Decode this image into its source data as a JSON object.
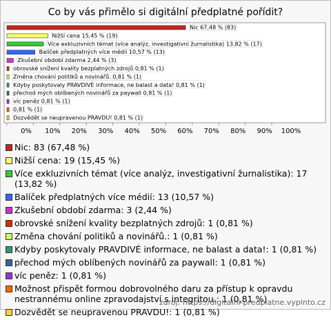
{
  "chart_data": {
    "type": "bar",
    "orientation": "horizontal",
    "title": "Co by vás přimělo si digitální předplatné pořídit?",
    "values": [
      67.48,
      15.45,
      13.82,
      10.57,
      2.44,
      0.81,
      0.81,
      0.81,
      0.81,
      0.81,
      0.81,
      0.81
    ],
    "value_labels": [
      "Nic 67,48 % (83)",
      "Nižší cena 15,45 % (19)",
      "Více exkluzivních témat (více analýz, investigativní žurnalistika) 13,82 % (17)",
      "Balíček předplatných více médií 10,57 % (13)",
      "Zkušební období zdarma 2,44 % (3)",
      "obrovské snížení kvality bezplatných zdrojů 0,81 % (1)",
      "Změna chování politiků a novinářů. 0,81 % (1)",
      "Kdyby poskytovaly PRAVDIVÉ informace, ne balast a data! 0,81 % (1)",
      "přechod mých oblíbených novinářů za paywall 0,81 % (1)",
      "víc peněz 0,81 % (1)",
      "0,81 % (1)",
      "Dozvědět se neupravenou PRAVDU! 0,81 % (1)"
    ],
    "legend_labels": [
      "Nic: 83 (67,48 %)",
      "Nižší cena: 19 (15,45 %)",
      "Více exkluzivních témat (více analýz, investigativní žurnalistika): 17 (13,82 %)",
      "Balíček předplatných více médií: 13 (10,57 %)",
      "Zkušební období zdarma: 3 (2,44 %)",
      "obrovské snížení kvality bezplatných zdrojů: 1 (0,81 %)",
      "Změna chování politiků a novinářů.: 1 (0,81 %)",
      "Kdyby poskytovaly PRAVDIVÉ informace, ne balast a data!: 1 (0,81 %)",
      "přechod mých oblíbených novinářů za paywall: 1 (0,81 %)",
      "víc peněz: 1 (0,81 %)",
      "Možnost přispět formou dobrovolného daru za přístup k opravdu nestrannému online zpravodajství s integritou.: 1 (0,81 %)",
      "Dozvědět se neupravenou PRAVDU!: 1 (0,81 %)"
    ],
    "colors": [
      "#c0281e",
      "#ffff66",
      "#33cc33",
      "#3366ff",
      "#cc33cc",
      "#cc3300",
      "#ccff66",
      "#339966",
      "#336699",
      "#9933cc",
      "#ff6600",
      "#ffcc33"
    ],
    "xlim": [
      0,
      100
    ],
    "xticks": [
      {
        "value": 0,
        "label": "0%"
      },
      {
        "value": 10,
        "label": "10%"
      },
      {
        "value": 20,
        "label": "20%"
      },
      {
        "value": 30,
        "label": "30%"
      },
      {
        "value": 40,
        "label": "40%"
      },
      {
        "value": 50,
        "label": "50%"
      },
      {
        "value": 60,
        "label": "60%"
      },
      {
        "value": 70,
        "label": "70%"
      },
      {
        "value": 80,
        "label": "80%"
      },
      {
        "value": 90,
        "label": "90%"
      },
      {
        "value": 100,
        "label": "100%"
      }
    ],
    "source": "zdroj: https://digitalni-predplatne.vyplnto.cz"
  }
}
